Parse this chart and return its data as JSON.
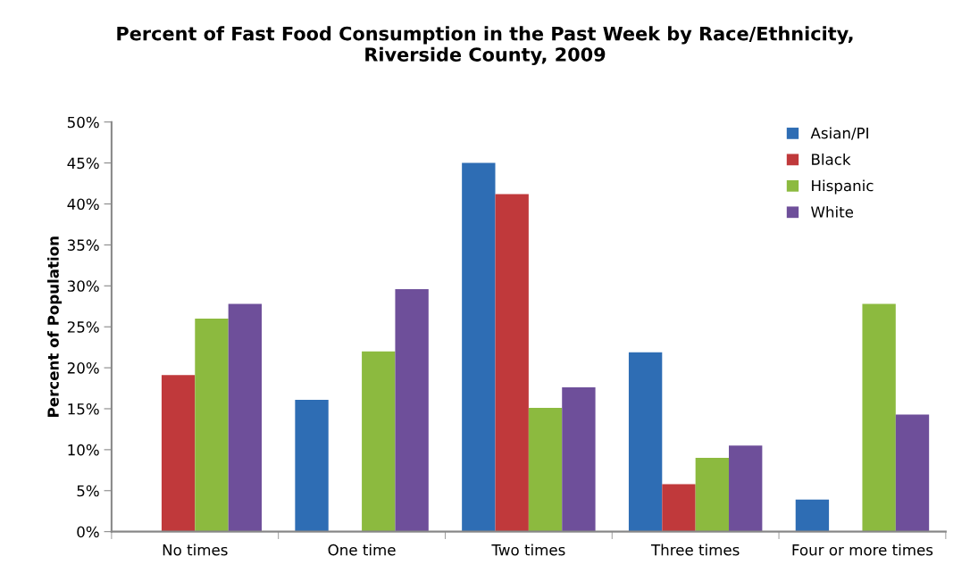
{
  "chart_data": {
    "type": "bar",
    "title": "Percent of Fast Food Consumption in the Past Week by Race/Ethnicity,\nRiverside County, 2009",
    "ylabel": "Percent of Population",
    "categories": [
      "No times",
      "One time",
      "Two times",
      "Three times",
      "Four or more times"
    ],
    "series": [
      {
        "name": "Asian/PI",
        "color": "#2e6db4",
        "values": [
          null,
          16.1,
          45.0,
          21.9,
          3.9
        ]
      },
      {
        "name": "Black",
        "color": "#c0393b",
        "values": [
          19.1,
          null,
          41.2,
          5.8,
          null
        ]
      },
      {
        "name": "Hispanic",
        "color": "#8cba3f",
        "values": [
          26.0,
          22.0,
          15.1,
          9.0,
          27.8
        ]
      },
      {
        "name": "White",
        "color": "#6e4f9a",
        "values": [
          27.8,
          29.6,
          17.6,
          10.5,
          14.3
        ]
      }
    ],
    "ylim": [
      0,
      50
    ],
    "yticks": [
      {
        "value": 0,
        "label": "0%"
      },
      {
        "value": 5,
        "label": "5%"
      },
      {
        "value": 10,
        "label": "10%"
      },
      {
        "value": 15,
        "label": "15%"
      },
      {
        "value": 20,
        "label": "20%"
      },
      {
        "value": 25,
        "label": "25%"
      },
      {
        "value": 30,
        "label": "30%"
      },
      {
        "value": 35,
        "label": "35%"
      },
      {
        "value": 40,
        "label": "40%"
      },
      {
        "value": 45,
        "label": "45%"
      },
      {
        "value": 50,
        "label": "50%"
      }
    ],
    "grid": false,
    "legend": "top right"
  }
}
